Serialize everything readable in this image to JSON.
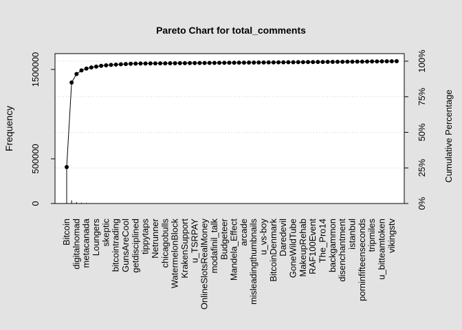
{
  "chart_data": {
    "type": "pareto",
    "title": "Pareto Chart for total_comments",
    "ylabel": "Frequency",
    "y2label": "Cumulative Percentage",
    "categories": [
      "Bitcoin",
      null,
      "digitalnomad",
      null,
      "metacanada",
      null,
      "Loungers",
      null,
      "skeptic",
      null,
      "bitcointrading",
      null,
      "GunsAreCool",
      null,
      "getdisciplined",
      null,
      "tippytaps",
      null,
      "Netrunner",
      null,
      "chicagobulls",
      null,
      "WatermelonBlock",
      null,
      "KrakenSupport",
      null,
      "u_TSRPAY",
      null,
      "OnlineSlotsRealMoney",
      null,
      "modafinil_talk",
      null,
      "Budgeteer",
      null,
      "Mandela_Effect",
      null,
      "arcade",
      null,
      "misleadingthumbnails",
      null,
      "u_vs-boy",
      null,
      "BitcoinDenmark",
      null,
      "Daredevil",
      null,
      "GoneWildTube",
      null,
      "MakeupRehab",
      null,
      "RAF100Event",
      null,
      "The_Pro14",
      null,
      "backgammon",
      null,
      "disenchantment",
      null,
      "istanbul",
      null,
      "porninfifteenseconds",
      null,
      "tripmiles",
      null,
      "u_bitteamtoken",
      null,
      "vikingstv",
      null
    ],
    "series": [
      {
        "color": "#000000",
        "values": [
          403000,
          35000,
          15000,
          9000,
          6000,
          4500,
          3500,
          3000,
          2500,
          2000,
          1800,
          1600,
          1400,
          1300,
          1200,
          500,
          500,
          500,
          500,
          500,
          500,
          500,
          500,
          500,
          500,
          500,
          500,
          500,
          500,
          500,
          500,
          500,
          500,
          500,
          500,
          500,
          500,
          500,
          500,
          500,
          500,
          500,
          500,
          500,
          500,
          500,
          500,
          500,
          500,
          500,
          500,
          500,
          500,
          500,
          500,
          500,
          500,
          500,
          500,
          500,
          500,
          500,
          500,
          500,
          500,
          500,
          500,
          500
        ]
      },
      {
        "color": "#000000",
        "axis": "y2",
        "values": [
          25.6,
          85.0,
          91.0,
          93.5,
          94.8,
          95.6,
          96.2,
          96.7,
          97.1,
          97.4,
          97.6,
          97.8,
          98.0,
          98.15,
          98.3,
          98.33,
          98.36,
          98.4,
          98.43,
          98.46,
          98.5,
          98.53,
          98.56,
          98.59,
          98.62,
          98.65,
          98.68,
          98.71,
          98.74,
          98.77,
          98.8,
          98.83,
          98.86,
          98.89,
          98.92,
          98.95,
          98.98,
          99.01,
          99.04,
          99.07,
          99.1,
          99.13,
          99.16,
          99.19,
          99.22,
          99.25,
          99.28,
          99.31,
          99.34,
          99.37,
          99.4,
          99.43,
          99.46,
          99.49,
          99.52,
          99.55,
          99.58,
          99.61,
          99.64,
          99.67,
          99.7,
          99.74,
          99.78,
          99.82,
          99.86,
          99.9,
          99.95,
          100
        ]
      }
    ],
    "ylim": [
      0,
      1677000
    ],
    "yticks": [
      0,
      500000,
      1500000
    ],
    "y2lim": [
      0,
      105.3
    ],
    "y2ticks": [
      {
        "value": 0,
        "label": "0%"
      },
      {
        "value": 25,
        "label": "25%"
      },
      {
        "value": 50,
        "label": "50%"
      },
      {
        "value": 75,
        "label": "75%"
      },
      {
        "value": 100,
        "label": "100%"
      }
    ],
    "grid": true
  }
}
